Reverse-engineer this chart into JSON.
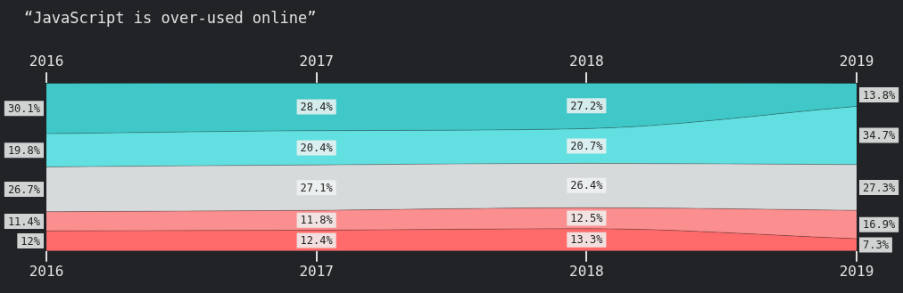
{
  "chart_data": {
    "type": "area",
    "title": "“JavaScript is over-used online”",
    "x": [
      2016,
      2017,
      2018,
      2019
    ],
    "xlim": [
      2016,
      2019
    ],
    "xticks": [
      2016,
      2017,
      2018,
      2019
    ],
    "x2lim": [
      2016,
      2019
    ],
    "x2ticks": [
      2016,
      2017,
      2018,
      2019
    ],
    "stacked": true,
    "grid": false,
    "legend": false,
    "tick_labels": "x",
    "series": [
      {
        "color": "#ff6b6b",
        "values": [
          12,
          12.4,
          13.3,
          7.3
        ],
        "value_labels": [
          "12%",
          "12.4%",
          "13.3%",
          "7.3%"
        ]
      },
      {
        "color": "#fb8f8f",
        "values": [
          11.4,
          11.8,
          12.5,
          16.9
        ],
        "value_labels": [
          "11.4%",
          "11.8%",
          "12.5%",
          "16.9%"
        ]
      },
      {
        "color": "#d6dada",
        "values": [
          26.7,
          27.1,
          26.4,
          27.3
        ],
        "value_labels": [
          "26.7%",
          "27.1%",
          "26.4%",
          "27.3%"
        ]
      },
      {
        "color": "#62dfe0",
        "values": [
          19.8,
          20.4,
          20.7,
          34.7
        ],
        "value_labels": [
          "19.8%",
          "20.4%",
          "20.7%",
          "34.7%"
        ]
      },
      {
        "color": "#40c8c8",
        "values": [
          30.1,
          28.4,
          27.2,
          13.8
        ],
        "value_labels": [
          "30.1%",
          "28.4%",
          "27.2%",
          "13.8%"
        ]
      }
    ]
  }
}
